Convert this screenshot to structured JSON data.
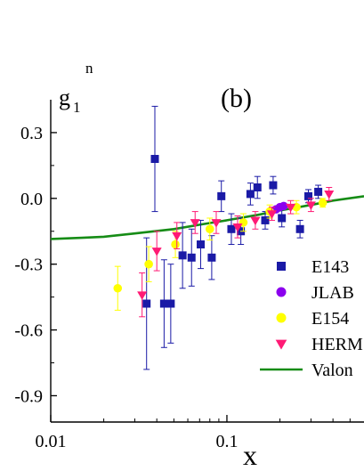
{
  "chart_data": {
    "type": "scatter",
    "panel_label": "(b)",
    "ylabel": {
      "main": "g",
      "sub": "1",
      "sup": "n"
    },
    "xlabel": "x",
    "x_scale": "log",
    "xlim": [
      0.01,
      0.6
    ],
    "ylim": [
      -1.02,
      0.45
    ],
    "xticks": [
      {
        "value": 0.01,
        "label": "0.01"
      },
      {
        "value": 0.1,
        "label": "0.1"
      }
    ],
    "yticks": [
      {
        "value": 0.3,
        "label": "0.3"
      },
      {
        "value": 0.0,
        "label": "0.0"
      },
      {
        "value": -0.3,
        "label": "-0.3"
      },
      {
        "value": -0.6,
        "label": "-0.6"
      },
      {
        "value": -0.9,
        "label": "-0.9"
      }
    ],
    "legend_position": "lower-right",
    "series": [
      {
        "name": "E143",
        "marker": "square",
        "color": "#1a1aa6",
        "points": [
          {
            "x": 0.035,
            "y": -0.48,
            "err": 0.3
          },
          {
            "x": 0.039,
            "y": 0.18,
            "err": 0.24
          },
          {
            "x": 0.044,
            "y": -0.48,
            "err": 0.2
          },
          {
            "x": 0.048,
            "y": -0.48,
            "err": 0.18
          },
          {
            "x": 0.056,
            "y": -0.26,
            "err": 0.15
          },
          {
            "x": 0.063,
            "y": -0.27,
            "err": 0.13
          },
          {
            "x": 0.071,
            "y": -0.21,
            "err": 0.11
          },
          {
            "x": 0.082,
            "y": -0.27,
            "err": 0.1
          },
          {
            "x": 0.093,
            "y": 0.01,
            "err": 0.07
          },
          {
            "x": 0.106,
            "y": -0.14,
            "err": 0.07
          },
          {
            "x": 0.12,
            "y": -0.15,
            "err": 0.06
          },
          {
            "x": 0.136,
            "y": 0.02,
            "err": 0.05
          },
          {
            "x": 0.149,
            "y": 0.05,
            "err": 0.05
          },
          {
            "x": 0.165,
            "y": -0.1,
            "err": 0.04
          },
          {
            "x": 0.183,
            "y": 0.06,
            "err": 0.04
          },
          {
            "x": 0.205,
            "y": -0.09,
            "err": 0.04
          },
          {
            "x": 0.26,
            "y": -0.14,
            "err": 0.04
          },
          {
            "x": 0.29,
            "y": 0.01,
            "err": 0.03
          },
          {
            "x": 0.33,
            "y": 0.03,
            "err": 0.03
          }
        ]
      },
      {
        "name": "JLAB",
        "marker": "circle",
        "color": "#8b00ee",
        "points": [
          {
            "x": 0.19,
            "y": -0.05,
            "err": 0.01
          },
          {
            "x": 0.2,
            "y": -0.04,
            "err": 0.01
          },
          {
            "x": 0.21,
            "y": -0.035,
            "err": 0.01
          }
        ]
      },
      {
        "name": "E154",
        "marker": "circle",
        "color": "#ffff00",
        "points": [
          {
            "x": 0.024,
            "y": -0.41,
            "err": 0.1
          },
          {
            "x": 0.036,
            "y": -0.3,
            "err": 0.08
          },
          {
            "x": 0.051,
            "y": -0.21,
            "err": 0.06
          },
          {
            "x": 0.08,
            "y": -0.14,
            "err": 0.05
          },
          {
            "x": 0.124,
            "y": -0.11,
            "err": 0.04
          },
          {
            "x": 0.175,
            "y": -0.06,
            "err": 0.03
          },
          {
            "x": 0.248,
            "y": -0.04,
            "err": 0.03
          },
          {
            "x": 0.35,
            "y": -0.02,
            "err": 0.02
          }
        ]
      },
      {
        "name": "HERM",
        "marker": "triangle-down",
        "color": "#ff1a75",
        "points": [
          {
            "x": 0.033,
            "y": -0.44,
            "err": 0.1
          },
          {
            "x": 0.04,
            "y": -0.24,
            "err": 0.09
          },
          {
            "x": 0.052,
            "y": -0.17,
            "err": 0.06
          },
          {
            "x": 0.066,
            "y": -0.11,
            "err": 0.05
          },
          {
            "x": 0.087,
            "y": -0.11,
            "err": 0.05
          },
          {
            "x": 0.115,
            "y": -0.13,
            "err": 0.05
          },
          {
            "x": 0.145,
            "y": -0.1,
            "err": 0.04
          },
          {
            "x": 0.18,
            "y": -0.07,
            "err": 0.03
          },
          {
            "x": 0.23,
            "y": -0.04,
            "err": 0.03
          },
          {
            "x": 0.3,
            "y": -0.03,
            "err": 0.03
          },
          {
            "x": 0.38,
            "y": 0.02,
            "err": 0.03
          }
        ]
      },
      {
        "name": "Valon",
        "marker": "line",
        "color": "#168c16",
        "points": [
          {
            "x": 0.01,
            "y": -0.185
          },
          {
            "x": 0.015,
            "y": -0.18
          },
          {
            "x": 0.02,
            "y": -0.175
          },
          {
            "x": 0.03,
            "y": -0.16
          },
          {
            "x": 0.05,
            "y": -0.14
          },
          {
            "x": 0.07,
            "y": -0.12
          },
          {
            "x": 0.1,
            "y": -0.1
          },
          {
            "x": 0.15,
            "y": -0.075
          },
          {
            "x": 0.2,
            "y": -0.055
          },
          {
            "x": 0.3,
            "y": -0.03
          },
          {
            "x": 0.4,
            "y": -0.01
          },
          {
            "x": 0.6,
            "y": 0.01
          }
        ]
      }
    ]
  }
}
